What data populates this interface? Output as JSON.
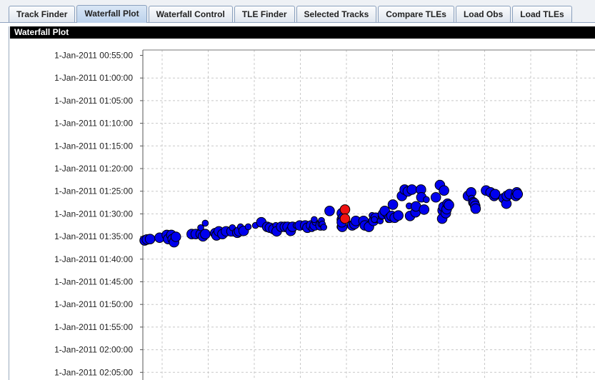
{
  "tabs": [
    {
      "label": "Track Finder",
      "active": false
    },
    {
      "label": "Waterfall Plot",
      "active": true
    },
    {
      "label": "Waterfall Control",
      "active": false
    },
    {
      "label": "TLE Finder",
      "active": false
    },
    {
      "label": "Selected Tracks",
      "active": false
    },
    {
      "label": "Compare TLEs",
      "active": false
    },
    {
      "label": "Load Obs",
      "active": false
    },
    {
      "label": "Load TLEs",
      "active": false
    }
  ],
  "panel": {
    "title": "Waterfall Plot"
  },
  "chart_data": {
    "type": "scatter",
    "y_axis": {
      "inverted": true,
      "tick_labels": [
        "1-Jan-2011 00:55:00",
        "1-Jan-2011 01:00:00",
        "1-Jan-2011 01:05:00",
        "1-Jan-2011 01:10:00",
        "1-Jan-2011 01:15:00",
        "1-Jan-2011 01:20:00",
        "1-Jan-2011 01:25:00",
        "1-Jan-2011 01:30:00",
        "1-Jan-2011 01:35:00",
        "1-Jan-2011 01:40:00",
        "1-Jan-2011 01:45:00",
        "1-Jan-2011 01:50:00",
        "1-Jan-2011 01:55:00",
        "1-Jan-2011 02:00:00",
        "1-Jan-2011 02:05:00"
      ],
      "range_minutes": [
        55,
        125
      ]
    },
    "x_axis": {
      "range": [
        0,
        1
      ],
      "tick_labels_visible": false
    },
    "grid": true,
    "colors": {
      "point": "#0000ee",
      "highlight": "#ee1111",
      "edge": "#000000"
    },
    "series": [
      {
        "color": "#0000ee",
        "points": [
          [
            0.004,
            95.8,
            "m"
          ],
          [
            0.009,
            95.6,
            "m"
          ],
          [
            0.016,
            95.5,
            "m"
          ],
          [
            0.037,
            95.2,
            "m"
          ],
          [
            0.053,
            94.6,
            "m"
          ],
          [
            0.056,
            95.5,
            "m"
          ],
          [
            0.063,
            94.6,
            "m"
          ],
          [
            0.066,
            95.5,
            "m"
          ],
          [
            0.069,
            96.2,
            "m"
          ],
          [
            0.073,
            95.0,
            "m"
          ],
          [
            0.108,
            94.4,
            "m"
          ],
          [
            0.117,
            94.4,
            "m"
          ],
          [
            0.128,
            94.4,
            "m"
          ],
          [
            0.128,
            93.0,
            "s"
          ],
          [
            0.133,
            94.9,
            "m"
          ],
          [
            0.138,
            94.4,
            "m"
          ],
          [
            0.138,
            92.0,
            "s"
          ],
          [
            0.16,
            94.2,
            "m"
          ],
          [
            0.163,
            94.7,
            "m"
          ],
          [
            0.168,
            93.8,
            "m"
          ],
          [
            0.176,
            94.4,
            "m"
          ],
          [
            0.184,
            93.8,
            "m"
          ],
          [
            0.196,
            93.8,
            "m"
          ],
          [
            0.198,
            93.0,
            "s"
          ],
          [
            0.209,
            94.1,
            "m"
          ],
          [
            0.213,
            93.8,
            "m"
          ],
          [
            0.216,
            92.8,
            "s"
          ],
          [
            0.223,
            93.7,
            "m"
          ],
          [
            0.233,
            92.8,
            "s"
          ],
          [
            0.249,
            92.5,
            "s"
          ],
          [
            0.262,
            91.8,
            "m"
          ],
          [
            0.275,
            92.8,
            "m"
          ],
          [
            0.281,
            93.0,
            "m"
          ],
          [
            0.289,
            93.3,
            "m"
          ],
          [
            0.294,
            92.5,
            "s"
          ],
          [
            0.296,
            93.8,
            "m"
          ],
          [
            0.306,
            92.8,
            "m"
          ],
          [
            0.314,
            92.8,
            "m"
          ],
          [
            0.32,
            92.8,
            "m"
          ],
          [
            0.327,
            93.7,
            "m"
          ],
          [
            0.331,
            92.8,
            "m"
          ],
          [
            0.339,
            92.5,
            "s"
          ],
          [
            0.347,
            92.5,
            "m"
          ],
          [
            0.359,
            92.5,
            "m"
          ],
          [
            0.364,
            93.0,
            "m"
          ],
          [
            0.372,
            92.5,
            "m"
          ],
          [
            0.374,
            93.2,
            "s"
          ],
          [
            0.38,
            92.5,
            "m"
          ],
          [
            0.381,
            91.8,
            "s"
          ],
          [
            0.393,
            92.5,
            "m"
          ],
          [
            0.394,
            92.2,
            "s"
          ],
          [
            0.379,
            91.2,
            "s"
          ],
          [
            0.395,
            91.4,
            "s"
          ],
          [
            0.397,
            92.2,
            "s"
          ],
          [
            0.4,
            92.9,
            "s"
          ],
          [
            0.413,
            89.3,
            "m"
          ],
          [
            0.436,
            92.8,
            "s"
          ],
          [
            0.441,
            92.8,
            "m"
          ],
          [
            0.44,
            91.2,
            "m"
          ],
          [
            0.44,
            89.8,
            "m"
          ],
          [
            0.443,
            90.8,
            "m"
          ],
          [
            0.44,
            91.8,
            "m"
          ],
          [
            0.463,
            92.5,
            "m"
          ],
          [
            0.468,
            92.2,
            "m"
          ],
          [
            0.471,
            91.5,
            "m"
          ],
          [
            0.488,
            91.5,
            "m"
          ],
          [
            0.491,
            92.5,
            "m"
          ],
          [
            0.5,
            92.8,
            "m"
          ],
          [
            0.507,
            90.3,
            "s"
          ],
          [
            0.51,
            91.5,
            "m"
          ],
          [
            0.515,
            90.8,
            "m"
          ],
          [
            0.512,
            91.2,
            "s"
          ],
          [
            0.525,
            91.5,
            "s"
          ],
          [
            0.527,
            90.5,
            "s"
          ],
          [
            0.531,
            90.0,
            "m"
          ],
          [
            0.538,
            90.2,
            "s"
          ],
          [
            0.535,
            89.3,
            "m"
          ],
          [
            0.543,
            91.2,
            "s"
          ],
          [
            0.546,
            90.8,
            "m"
          ],
          [
            0.55,
            90.4,
            "m"
          ],
          [
            0.553,
            87.9,
            "m"
          ],
          [
            0.557,
            90.8,
            "m"
          ],
          [
            0.565,
            90.3,
            "m"
          ],
          [
            0.573,
            86.0,
            "m"
          ],
          [
            0.579,
            84.6,
            "m"
          ],
          [
            0.586,
            85.0,
            "m"
          ],
          [
            0.589,
            88.2,
            "s"
          ],
          [
            0.591,
            90.4,
            "m"
          ],
          [
            0.595,
            84.6,
            "m"
          ],
          [
            0.603,
            89.6,
            "m"
          ],
          [
            0.604,
            88.3,
            "m"
          ],
          [
            0.615,
            84.6,
            "m"
          ],
          [
            0.616,
            86.3,
            "m"
          ],
          [
            0.622,
            89.0,
            "m"
          ],
          [
            0.627,
            86.8,
            "s"
          ],
          [
            0.648,
            86.3,
            "m"
          ],
          [
            0.657,
            83.6,
            "m"
          ],
          [
            0.663,
            89.2,
            "m"
          ],
          [
            0.662,
            91.0,
            "m"
          ],
          [
            0.665,
            88.4,
            "m"
          ],
          [
            0.666,
            84.8,
            "m"
          ],
          [
            0.67,
            89.8,
            "m"
          ],
          [
            0.672,
            88.9,
            "m"
          ],
          [
            0.674,
            87.7,
            "m"
          ],
          [
            0.677,
            88.0,
            "m"
          ],
          [
            0.719,
            86.0,
            "m"
          ],
          [
            0.726,
            85.2,
            "m"
          ],
          [
            0.727,
            86.5,
            "s"
          ],
          [
            0.731,
            87.4,
            "m"
          ],
          [
            0.733,
            87.6,
            "m"
          ],
          [
            0.735,
            88.2,
            "m"
          ],
          [
            0.736,
            88.8,
            "m"
          ],
          [
            0.759,
            84.8,
            "m"
          ],
          [
            0.769,
            85.2,
            "m"
          ],
          [
            0.777,
            86.0,
            "m"
          ],
          [
            0.779,
            85.6,
            "m"
          ],
          [
            0.798,
            86.5,
            "m"
          ],
          [
            0.804,
            87.7,
            "m"
          ],
          [
            0.805,
            86.0,
            "m"
          ],
          [
            0.811,
            85.6,
            "m"
          ],
          [
            0.825,
            86.0,
            "m"
          ],
          [
            0.827,
            85.2,
            "m"
          ],
          [
            0.829,
            85.6,
            "m"
          ]
        ]
      },
      {
        "color": "#ee1111",
        "points": [
          [
            0.447,
            89.0,
            "m"
          ],
          [
            0.447,
            91.0,
            "m"
          ]
        ]
      }
    ]
  }
}
